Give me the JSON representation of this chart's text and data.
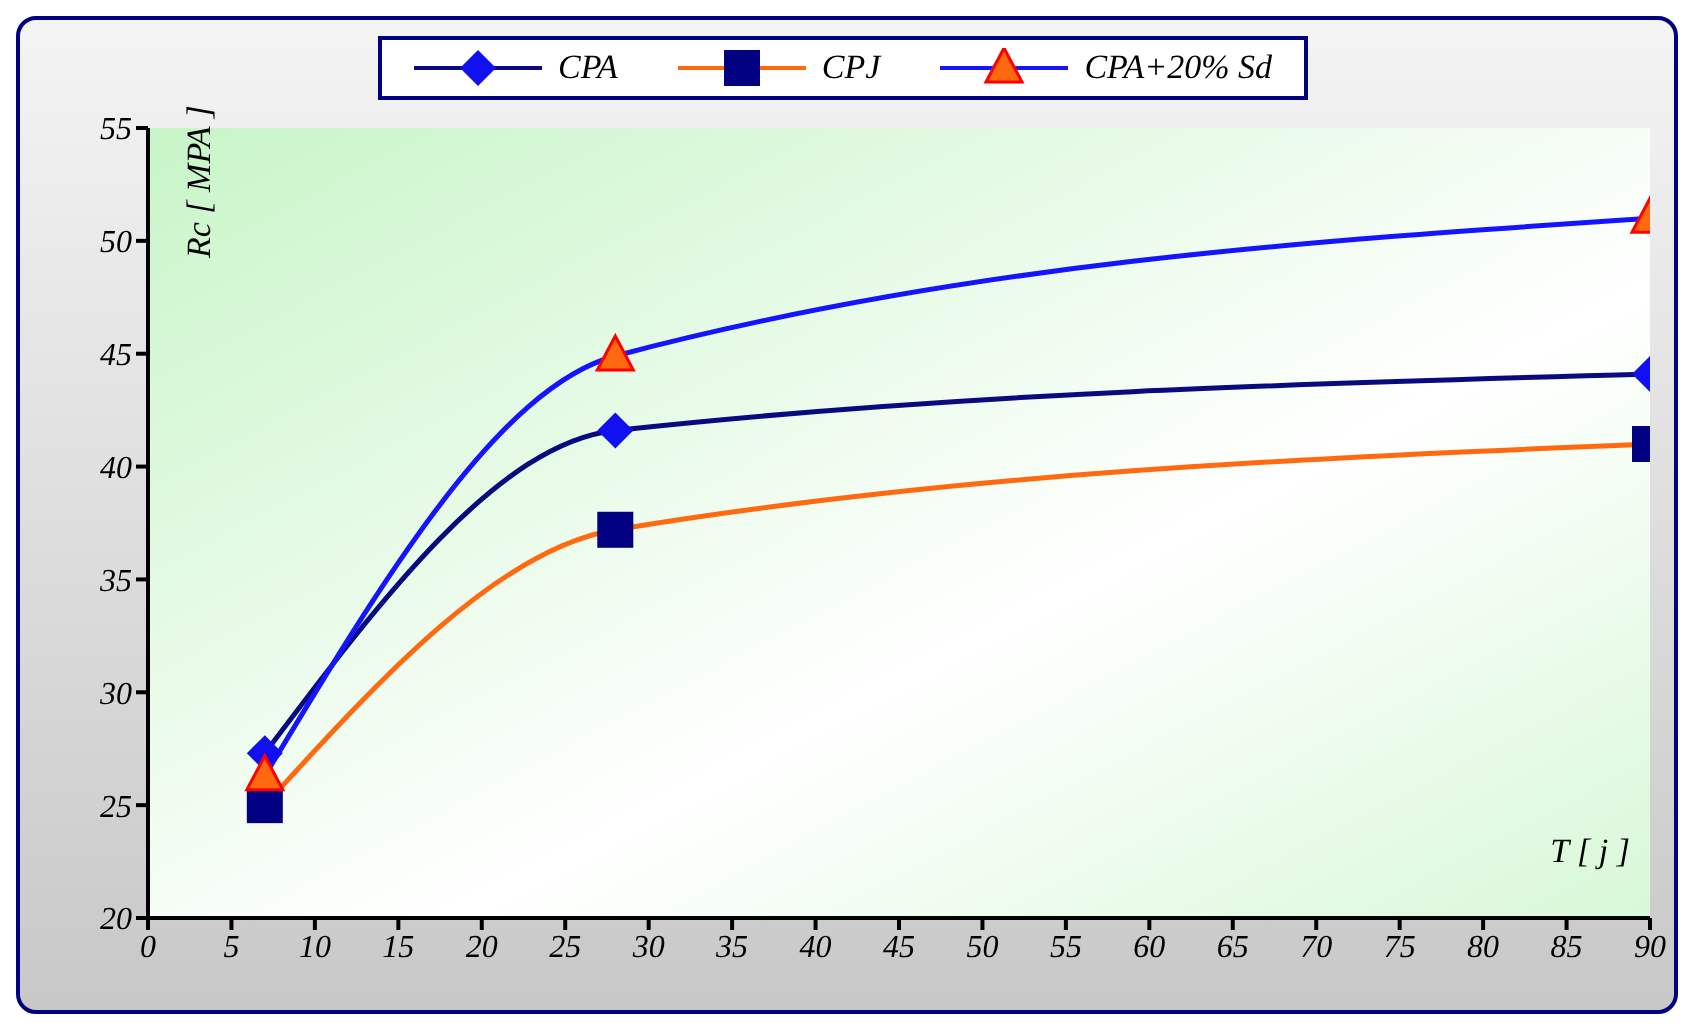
{
  "chart_data": {
    "type": "line",
    "xlabel": "T [ j ]",
    "ylabel": "Rc [ MPA ]",
    "x": [
      7,
      28,
      90
    ],
    "series": [
      {
        "name": "CPA",
        "color": "#0a0a80",
        "marker": "diamond",
        "colors": [
          "#1010f0",
          "#1010f0",
          "#1010f0"
        ],
        "values": [
          27.3,
          41.6,
          44.1
        ]
      },
      {
        "name": "CPJ",
        "color": "#ff6a10",
        "marker": "square",
        "colors": [
          "#000080",
          "#000080",
          "#000080"
        ],
        "values": [
          25.0,
          37.2,
          41.0
        ]
      },
      {
        "name": "CPA+20% Sd",
        "color": "#1414ff",
        "marker": "triangle",
        "colors": [
          "#ff6a10",
          "#ff6a10",
          "#ff6a10"
        ],
        "values": [
          26.3,
          44.9,
          51.0
        ]
      }
    ],
    "xlim": [
      0,
      90
    ],
    "xticks": [
      0,
      5,
      10,
      15,
      20,
      25,
      30,
      35,
      40,
      45,
      50,
      55,
      60,
      65,
      70,
      75,
      80,
      85,
      90
    ],
    "ylim": [
      20,
      55
    ],
    "yticks": [
      20,
      25,
      30,
      35,
      40,
      45,
      50,
      55
    ],
    "grid": false,
    "legend": "top"
  }
}
